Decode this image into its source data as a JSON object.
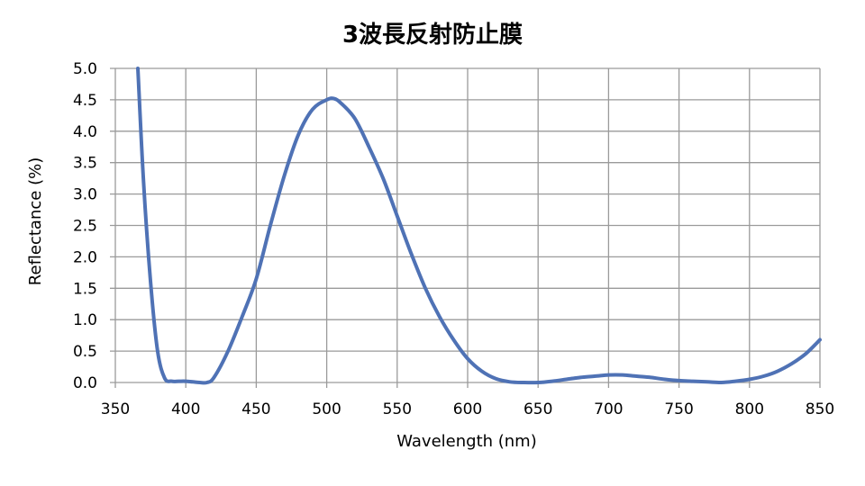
{
  "chart_data": {
    "type": "line",
    "title": "3波長反射防止膜",
    "xlabel": "Wavelength  (nm)",
    "ylabel": "Reflectance  (%)",
    "xlim": [
      350,
      850
    ],
    "ylim": [
      0,
      5
    ],
    "grid": true,
    "line_color": "#4f72b5",
    "x_ticks": [
      "350",
      "400",
      "450",
      "500",
      "550",
      "600",
      "650",
      "700",
      "750",
      "800",
      "850"
    ],
    "y_ticks": [
      "0.0",
      "0.5",
      "1.0",
      "1.5",
      "2.0",
      "2.5",
      "3.0",
      "3.5",
      "4.0",
      "4.5",
      "5.0"
    ],
    "series": [
      {
        "x": [
          366,
          370,
          375,
          380,
          385,
          390,
          395,
          400,
          405,
          410,
          415,
          420,
          430,
          440,
          450,
          460,
          470,
          480,
          490,
          500,
          505,
          510,
          520,
          530,
          540,
          550,
          560,
          570,
          580,
          590,
          600,
          610,
          620,
          630,
          640,
          650,
          660,
          670,
          680,
          690,
          700,
          710,
          720,
          730,
          740,
          750,
          760,
          770,
          780,
          790,
          800,
          810,
          820,
          830,
          840,
          850
        ],
        "y": [
          5.0,
          3.2,
          1.6,
          0.5,
          0.07,
          0.02,
          0.02,
          0.02,
          0.01,
          0.0,
          0.0,
          0.08,
          0.5,
          1.05,
          1.65,
          2.5,
          3.3,
          3.95,
          4.35,
          4.5,
          4.52,
          4.45,
          4.2,
          3.75,
          3.25,
          2.65,
          2.05,
          1.5,
          1.05,
          0.68,
          0.38,
          0.18,
          0.06,
          0.01,
          0.0,
          0.0,
          0.02,
          0.05,
          0.08,
          0.1,
          0.12,
          0.12,
          0.1,
          0.08,
          0.05,
          0.03,
          0.02,
          0.01,
          0.0,
          0.02,
          0.05,
          0.1,
          0.18,
          0.3,
          0.46,
          0.68
        ]
      }
    ]
  }
}
